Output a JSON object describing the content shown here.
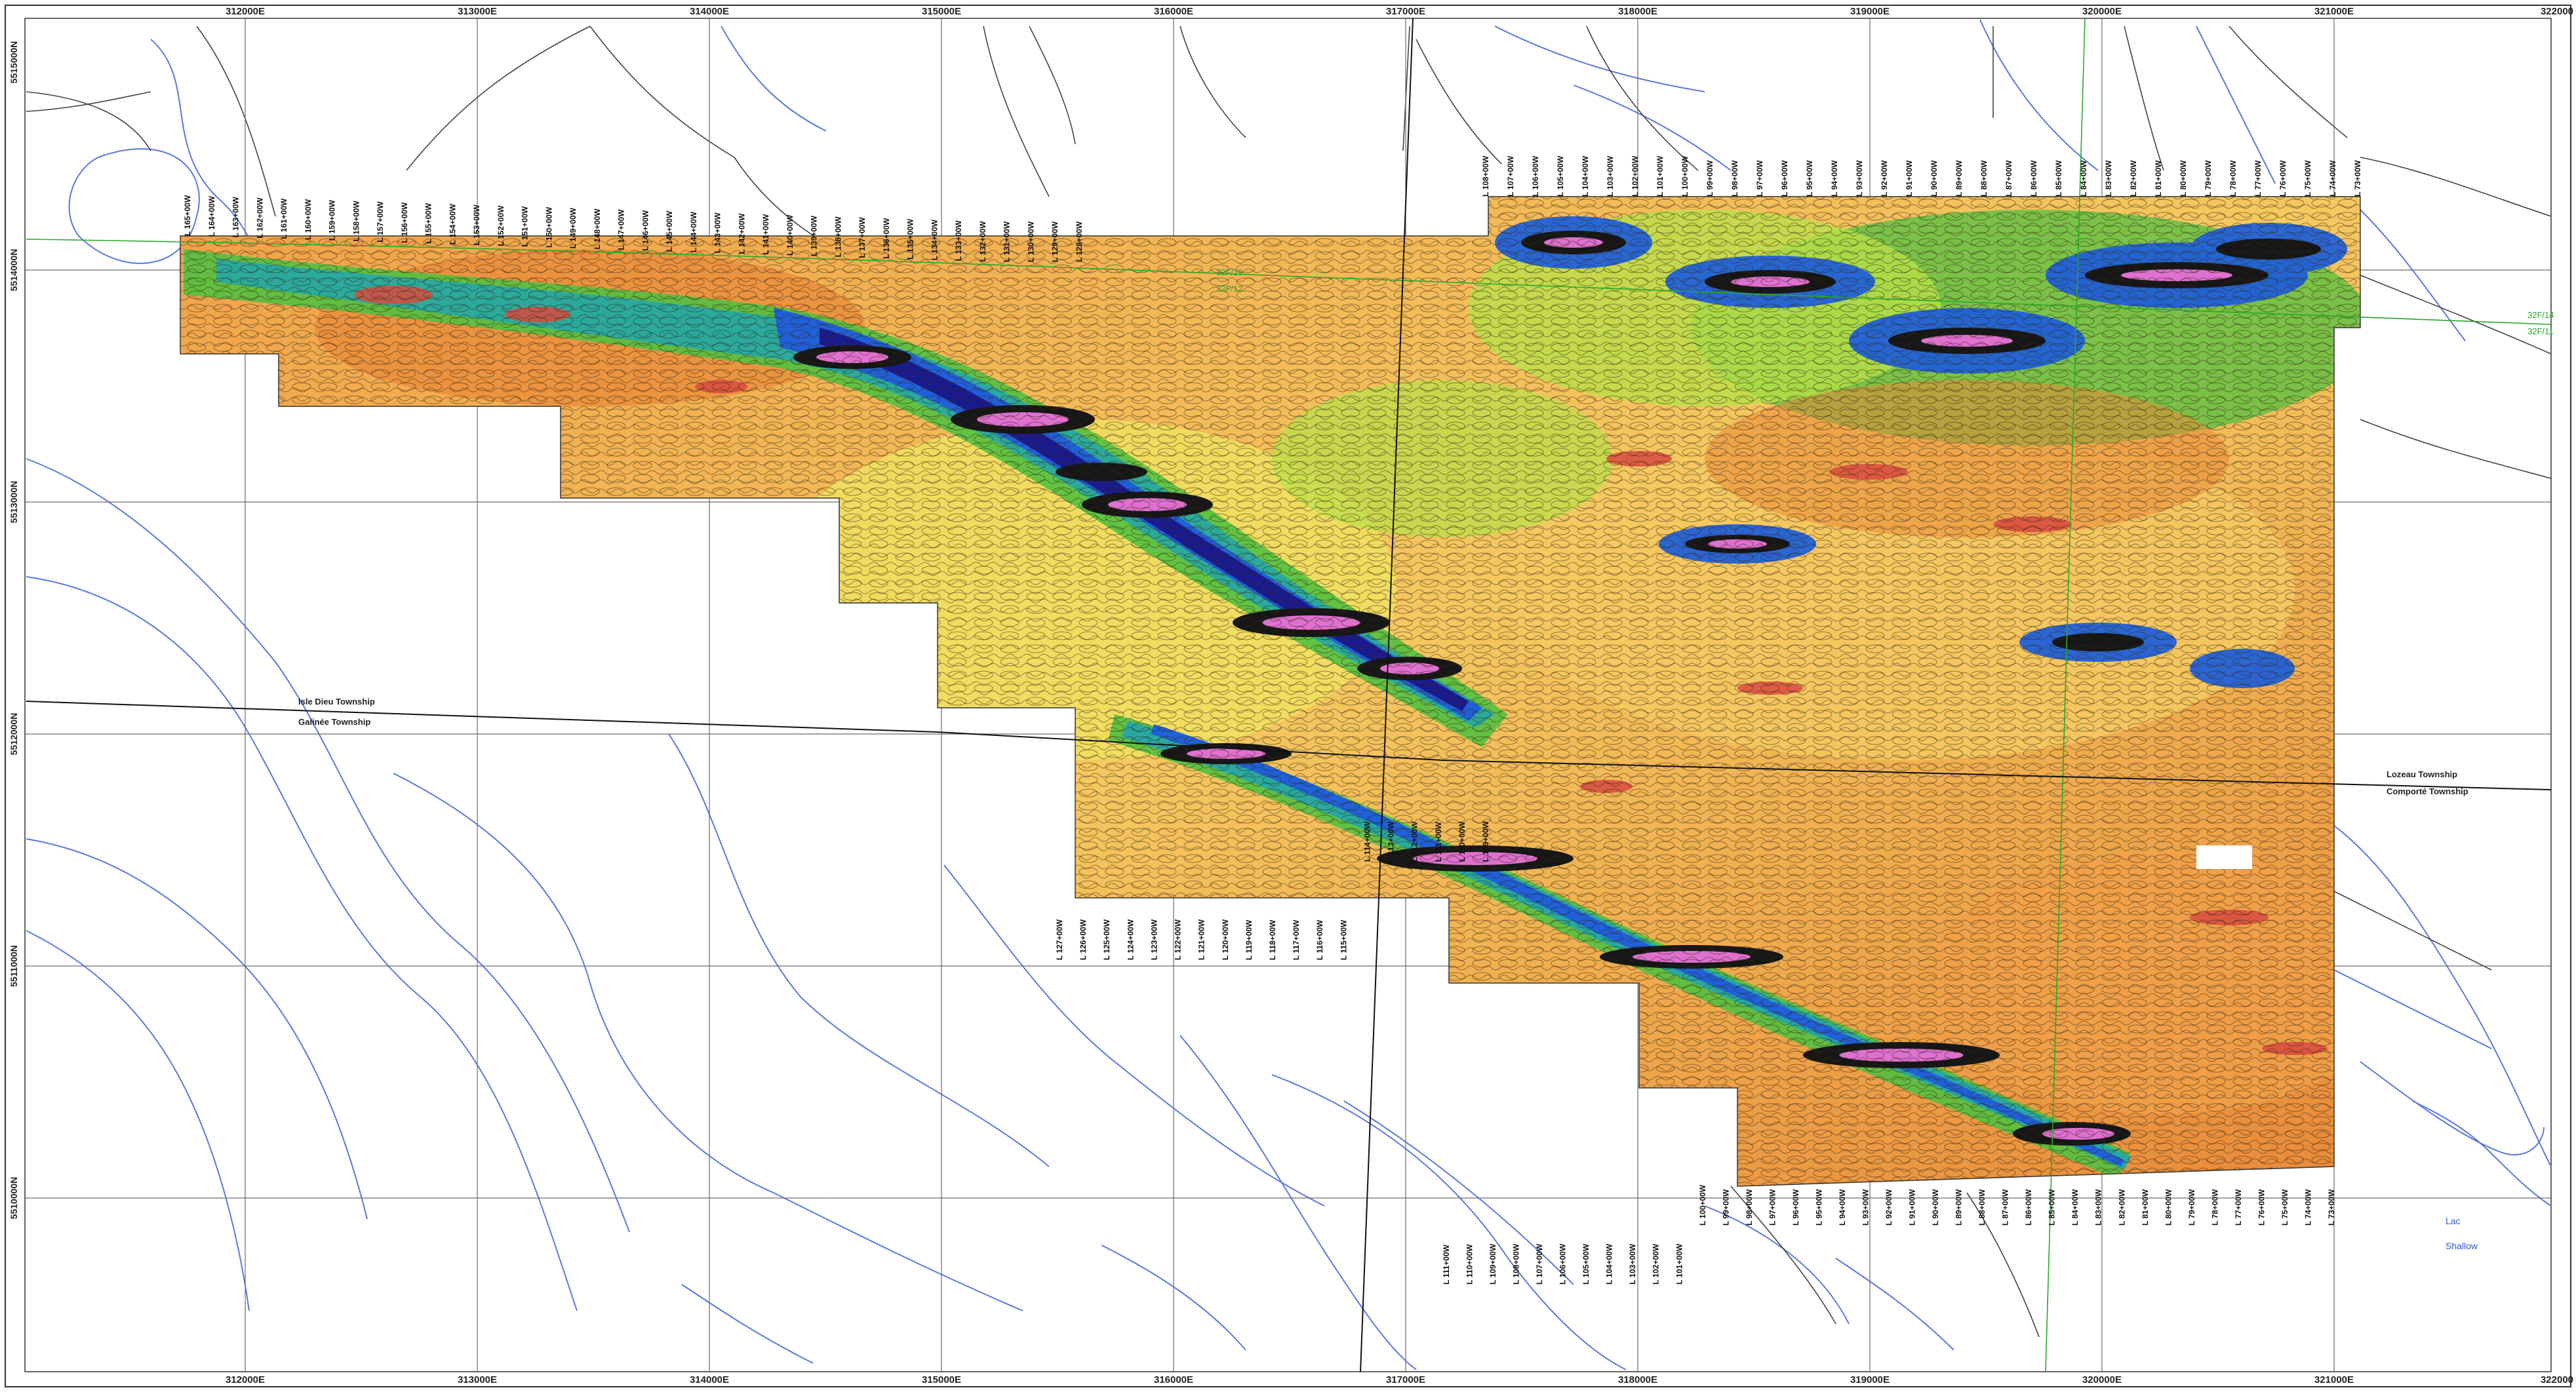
{
  "map": {
    "colors": {
      "background": "#ffffff",
      "grid": "#6a6a6a",
      "hydrography": "#5a78e0",
      "roads": "#444444",
      "sheet_boundary": "#2aa82a",
      "township_boundary": "#111111",
      "ramp": [
        "#e88838",
        "#f0a048",
        "#f5c860",
        "#f0e060",
        "#b8e048",
        "#52c040",
        "#28a8a0",
        "#2060d8",
        "#1a1a90",
        "#161616",
        "#e070d0",
        "#ffd0f0"
      ]
    },
    "eastings": [
      "312000E",
      "313000E",
      "314000E",
      "315000E",
      "316000E",
      "317000E",
      "318000E",
      "319000E",
      "320000E",
      "321000E",
      "322000"
    ],
    "northings": [
      "5514000N",
      "5513000N",
      "5512000N",
      "5511000N",
      "5510000N"
    ],
    "northing_top_partial": "5515000N",
    "townships": {
      "isle_dieu": "Isle Dieu Township",
      "galinee": "Galinée Township",
      "lozeau": "Lozeau Township",
      "comporte": "Comporté Township"
    },
    "sheets": {
      "a": "32F/13",
      "b": "32F/12",
      "c": "32F/14",
      "d": "32F/11"
    },
    "water": {
      "lac": "Lac",
      "shallow": "Shallow"
    },
    "lines_top": [
      "L 165+00W",
      "L 164+00W",
      "L 163+00W",
      "L 162+00W",
      "L 161+00W",
      "L 160+00W",
      "L 159+00W",
      "L 158+00W",
      "L 157+00W",
      "L 156+00W",
      "L 155+00W",
      "L 154+00W",
      "L 153+00W",
      "L 152+00W",
      "L 151+00W",
      "L 150+00W",
      "L 149+00W",
      "L 148+00W",
      "L 147+00W",
      "L 146+00W",
      "L 145+00W",
      "L 144+00W",
      "L 143+00W",
      "L 142+00W",
      "L 141+00W",
      "L 140+00W",
      "L 139+00W",
      "L 138+00W",
      "L 137+00W",
      "L 136+00W",
      "L 135+00W",
      "L 134+00W",
      "L 133+00W",
      "L 132+00W",
      "L 131+00W",
      "L 130+00W",
      "L 129+00W",
      "L 128+00W",
      "L 108+00W",
      "L 107+00W",
      "L 106+00W",
      "L 105+00W",
      "L 104+00W",
      "L 103+00W",
      "L 102+00W",
      "L 101+00W",
      "L 100+00W",
      "L 99+00W",
      "L 98+00W",
      "L 97+00W",
      "L 96+00W",
      "L 95+00W",
      "L 94+00W",
      "L 93+00W",
      "L 92+00W",
      "L 91+00W",
      "L 90+00W",
      "L 89+00W",
      "L 88+00W",
      "L 87+00W",
      "L 86+00W",
      "L 85+00W",
      "L 84+00W",
      "L 83+00W",
      "L 82+00W",
      "L 81+00W",
      "L 80+00W",
      "L 79+00W",
      "L 78+00W",
      "L 77+00W",
      "L 76+00W",
      "L 75+00W",
      "L 74+00W",
      "L 73+00W"
    ],
    "lines_mid": [
      "L 127+00W",
      "L 126+00W",
      "L 125+00W",
      "L 124+00W",
      "L 123+00W",
      "L 122+00W",
      "L 121+00W",
      "L 120+00W",
      "L 119+00W",
      "L 118+00W",
      "L 117+00W",
      "L 116+00W",
      "L 115+00W",
      "L 114+00W",
      "L 113+00W",
      "L 112+00W",
      "L 111+00W",
      "L 110+00W",
      "L 109+00W"
    ],
    "lines_bottom": [
      "L 111+00W",
      "L 110+00W",
      "L 109+00W",
      "L 108+00W",
      "L 107+00W",
      "L 106+00W",
      "L 105+00W",
      "L 104+00W",
      "L 103+00W",
      "L 102+00W",
      "L 101+00W",
      "L 100+00W",
      "L 99+00W",
      "L 98+00W",
      "L 97+00W",
      "L 96+00W",
      "L 95+00W",
      "L 94+00W",
      "L 93+00W",
      "L 92+00W",
      "L 91+00W",
      "L 90+00W",
      "L 89+00W",
      "L 88+00W",
      "L 87+00W",
      "L 86+00W",
      "L 85+00W",
      "L 84+00W",
      "L 83+00W",
      "L 82+00W",
      "L 81+00W",
      "L 80+00W",
      "L 79+00W",
      "L 78+00W",
      "L 77+00W",
      "L 76+00W",
      "L 75+00W",
      "L 74+00W",
      "L 73+00W"
    ]
  }
}
